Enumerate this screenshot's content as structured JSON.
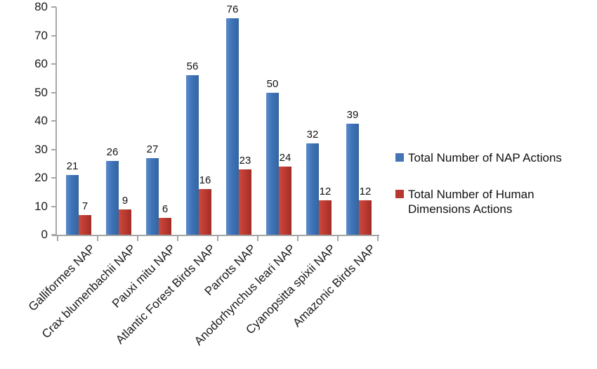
{
  "chart_data": {
    "type": "bar",
    "title": "",
    "xlabel": "",
    "ylabel": "",
    "categories": [
      "Galliformes NAP",
      "Crax blumenbachii NAP",
      "Pauxi mitu NAP",
      "Atlantic Forest Birds NAP",
      "Parrots NAP",
      "Anodorhynchus leari NAP",
      "Cyanopsitta spixii NAP",
      "Amazonic Birds NAP"
    ],
    "series": [
      {
        "name": "Total Number of NAP Actions",
        "color": "#3e73b8",
        "values": [
          21,
          26,
          27,
          56,
          76,
          50,
          32,
          39
        ]
      },
      {
        "name": "Total Number of Human\nDimensions Actions",
        "color": "#bb3a31",
        "values": [
          7,
          9,
          6,
          16,
          23,
          24,
          12,
          12
        ]
      }
    ],
    "data_labels_shown": true,
    "ylim": [
      0,
      80
    ],
    "ytick_step": 10,
    "grid": false,
    "legend_position": "right",
    "category_label_rotation_deg": -45,
    "axis_color": "#a6a6a6",
    "text_color": "#1a1a1a",
    "background_color": "#ffffff"
  }
}
